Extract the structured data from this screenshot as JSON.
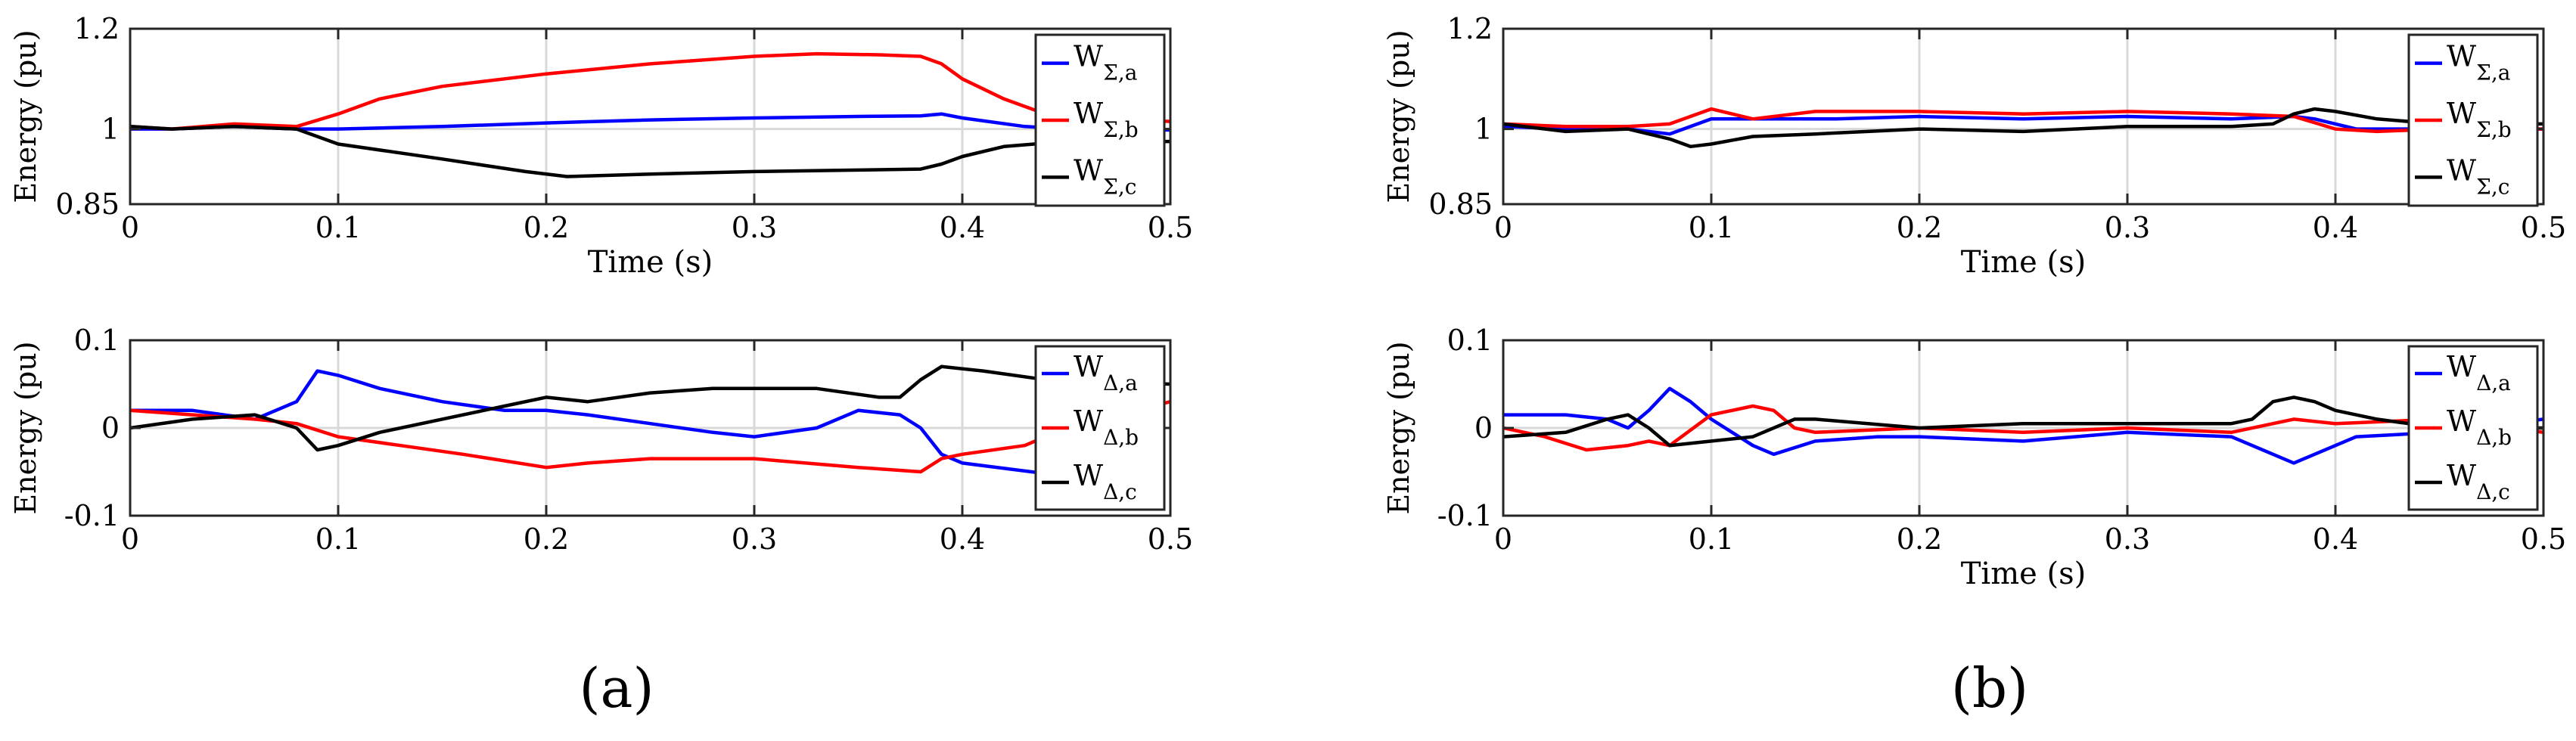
{
  "chart_data": [
    {
      "type": "line",
      "subfigure": "(a)",
      "ylabel": "Energy (pu)",
      "xlabel": "Time (s)",
      "xlim": [
        0,
        0.5
      ],
      "ylim": [
        0.85,
        1.2
      ],
      "xticks": [
        "0",
        "0.1",
        "0.2",
        "0.3",
        "0.4",
        "0.5"
      ],
      "xtick_values": [
        0,
        0.1,
        0.2,
        0.3,
        0.4,
        0.5
      ],
      "yticks": [
        "0.85",
        "1",
        "1.2"
      ],
      "ytick_values": [
        0.85,
        1,
        1.2
      ],
      "grid": true,
      "legend_position": "right",
      "series": [
        {
          "name": "W",
          "sub": "Σ,a",
          "color": "#0000ff",
          "x": [
            0,
            0.02,
            0.05,
            0.08,
            0.1,
            0.15,
            0.2,
            0.25,
            0.3,
            0.35,
            0.38,
            0.39,
            0.4,
            0.43,
            0.46,
            0.5
          ],
          "y": [
            1.0,
            1.0,
            1.005,
            1.0,
            1.0,
            1.005,
            1.012,
            1.018,
            1.022,
            1.025,
            1.026,
            1.03,
            1.022,
            1.005,
            0.998,
            0.998
          ]
        },
        {
          "name": "W",
          "sub": "Σ,b",
          "color": "#ff0000",
          "x": [
            0,
            0.02,
            0.05,
            0.08,
            0.1,
            0.12,
            0.15,
            0.2,
            0.25,
            0.3,
            0.33,
            0.36,
            0.38,
            0.39,
            0.4,
            0.42,
            0.44,
            0.47,
            0.5
          ],
          "y": [
            1.005,
            1.0,
            1.01,
            1.005,
            1.03,
            1.06,
            1.085,
            1.11,
            1.13,
            1.145,
            1.15,
            1.148,
            1.145,
            1.13,
            1.1,
            1.06,
            1.03,
            1.02,
            1.015
          ]
        },
        {
          "name": "W",
          "sub": "Σ,c",
          "color": "#000000",
          "x": [
            0,
            0.02,
            0.05,
            0.08,
            0.1,
            0.15,
            0.19,
            0.21,
            0.25,
            0.3,
            0.35,
            0.38,
            0.39,
            0.4,
            0.42,
            0.45,
            0.5
          ],
          "y": [
            1.005,
            1.0,
            1.005,
            1.0,
            0.97,
            0.94,
            0.915,
            0.905,
            0.91,
            0.915,
            0.918,
            0.92,
            0.93,
            0.945,
            0.965,
            0.975,
            0.975
          ]
        }
      ]
    },
    {
      "type": "line",
      "subfigure": "(a)",
      "ylabel": "Energy (pu)",
      "xlabel": "",
      "xlim": [
        0,
        0.5
      ],
      "ylim": [
        -0.1,
        0.1
      ],
      "xticks": [
        "0",
        "0.1",
        "0.2",
        "0.3",
        "0.4",
        "0.5"
      ],
      "xtick_values": [
        0,
        0.1,
        0.2,
        0.3,
        0.4,
        0.5
      ],
      "yticks": [
        "-0.1",
        "0",
        "0.1"
      ],
      "ytick_values": [
        -0.1,
        0,
        0.1
      ],
      "grid": true,
      "legend_position": "right",
      "series": [
        {
          "name": "W",
          "sub": "Δ,a",
          "color": "#0000ff",
          "x": [
            0,
            0.03,
            0.06,
            0.08,
            0.09,
            0.1,
            0.12,
            0.15,
            0.18,
            0.2,
            0.22,
            0.25,
            0.28,
            0.3,
            0.33,
            0.35,
            0.37,
            0.38,
            0.39,
            0.4,
            0.45
          ],
          "y": [
            0.02,
            0.02,
            0.01,
            0.03,
            0.065,
            0.06,
            0.045,
            0.03,
            0.02,
            0.02,
            0.015,
            0.005,
            -0.005,
            -0.01,
            0.0,
            0.02,
            0.015,
            0.0,
            -0.03,
            -0.04,
            -0.055
          ]
        },
        {
          "name": "W",
          "sub": "Δ,b",
          "color": "#ff0000",
          "x": [
            0,
            0.03,
            0.06,
            0.08,
            0.1,
            0.13,
            0.16,
            0.2,
            0.22,
            0.25,
            0.3,
            0.35,
            0.38,
            0.39,
            0.4,
            0.43,
            0.45,
            0.5
          ],
          "y": [
            0.02,
            0.015,
            0.01,
            0.005,
            -0.01,
            -0.02,
            -0.03,
            -0.045,
            -0.04,
            -0.035,
            -0.035,
            -0.045,
            -0.05,
            -0.035,
            -0.03,
            -0.02,
            0.0,
            0.03
          ]
        },
        {
          "name": "W",
          "sub": "Δ,c",
          "color": "#000000",
          "x": [
            0,
            0.03,
            0.06,
            0.08,
            0.09,
            0.1,
            0.12,
            0.15,
            0.18,
            0.2,
            0.22,
            0.25,
            0.28,
            0.3,
            0.33,
            0.36,
            0.37,
            0.38,
            0.39,
            0.41,
            0.44,
            0.5
          ],
          "y": [
            0.0,
            0.01,
            0.015,
            0.0,
            -0.025,
            -0.02,
            -0.005,
            0.01,
            0.025,
            0.035,
            0.03,
            0.04,
            0.045,
            0.045,
            0.045,
            0.035,
            0.035,
            0.055,
            0.07,
            0.065,
            0.055,
            0.05
          ]
        }
      ]
    },
    {
      "type": "line",
      "subfigure": "(b)",
      "ylabel": "Energy (pu)",
      "xlabel": "Time (s)",
      "xlim": [
        0,
        0.5
      ],
      "ylim": [
        0.85,
        1.2
      ],
      "xticks": [
        "0",
        "0.1",
        "0.2",
        "0.3",
        "0.4",
        "0.5"
      ],
      "xtick_values": [
        0,
        0.1,
        0.2,
        0.3,
        0.4,
        0.5
      ],
      "yticks": [
        "0.85",
        "1",
        "1.2"
      ],
      "ytick_values": [
        0.85,
        1,
        1.2
      ],
      "grid": true,
      "legend_position": "right",
      "series": [
        {
          "name": "W",
          "sub": "Σ,a",
          "color": "#0000ff",
          "x": [
            0,
            0.03,
            0.06,
            0.08,
            0.1,
            0.13,
            0.16,
            0.2,
            0.25,
            0.3,
            0.35,
            0.38,
            0.39,
            0.41,
            0.45,
            0.5
          ],
          "y": [
            1.005,
            1.0,
            1.0,
            0.99,
            1.02,
            1.02,
            1.02,
            1.025,
            1.02,
            1.025,
            1.02,
            1.025,
            1.02,
            1.0,
            1.0,
            1.0
          ]
        },
        {
          "name": "W",
          "sub": "Σ,b",
          "color": "#ff0000",
          "x": [
            0,
            0.03,
            0.06,
            0.08,
            0.1,
            0.12,
            0.15,
            0.2,
            0.25,
            0.3,
            0.35,
            0.38,
            0.4,
            0.42,
            0.45,
            0.5
          ],
          "y": [
            1.01,
            1.005,
            1.005,
            1.01,
            1.04,
            1.02,
            1.035,
            1.035,
            1.03,
            1.035,
            1.03,
            1.025,
            1.0,
            0.995,
            1.0,
            1.0
          ]
        },
        {
          "name": "W",
          "sub": "Σ,c",
          "color": "#000000",
          "x": [
            0,
            0.03,
            0.06,
            0.08,
            0.09,
            0.1,
            0.12,
            0.15,
            0.2,
            0.25,
            0.3,
            0.35,
            0.37,
            0.38,
            0.39,
            0.4,
            0.42,
            0.45,
            0.5
          ],
          "y": [
            1.01,
            0.995,
            1.0,
            0.98,
            0.965,
            0.97,
            0.985,
            0.99,
            1.0,
            0.995,
            1.005,
            1.005,
            1.01,
            1.03,
            1.04,
            1.035,
            1.02,
            1.01,
            1.01
          ]
        }
      ]
    },
    {
      "type": "line",
      "subfigure": "(b)",
      "ylabel": "Energy (pu)",
      "xlabel": "Time (s)",
      "xlim": [
        0,
        0.5
      ],
      "ylim": [
        -0.1,
        0.1
      ],
      "xticks": [
        "0",
        "0.1",
        "0.2",
        "0.3",
        "0.4",
        "0.5"
      ],
      "xtick_values": [
        0,
        0.1,
        0.2,
        0.3,
        0.4,
        0.5
      ],
      "yticks": [
        "-0.1",
        "0",
        "0.1"
      ],
      "ytick_values": [
        -0.1,
        0,
        0.1
      ],
      "grid": true,
      "legend_position": "right",
      "series": [
        {
          "name": "W",
          "sub": "Δ,a",
          "color": "#0000ff",
          "x": [
            0,
            0.03,
            0.05,
            0.06,
            0.07,
            0.08,
            0.09,
            0.1,
            0.12,
            0.13,
            0.15,
            0.18,
            0.2,
            0.25,
            0.3,
            0.35,
            0.37,
            0.38,
            0.39,
            0.41,
            0.45,
            0.5
          ],
          "y": [
            0.015,
            0.015,
            0.01,
            0.0,
            0.02,
            0.045,
            0.03,
            0.01,
            -0.02,
            -0.03,
            -0.015,
            -0.01,
            -0.01,
            -0.015,
            -0.005,
            -0.01,
            -0.03,
            -0.04,
            -0.03,
            -0.01,
            -0.005,
            0.01
          ]
        },
        {
          "name": "W",
          "sub": "Δ,b",
          "color": "#ff0000",
          "x": [
            0,
            0.02,
            0.04,
            0.06,
            0.07,
            0.08,
            0.1,
            0.12,
            0.13,
            0.14,
            0.15,
            0.2,
            0.25,
            0.3,
            0.35,
            0.38,
            0.4,
            0.45,
            0.5
          ],
          "y": [
            0.0,
            -0.01,
            -0.025,
            -0.02,
            -0.015,
            -0.02,
            0.015,
            0.025,
            0.02,
            0.0,
            -0.005,
            0.0,
            -0.005,
            0.0,
            -0.005,
            0.01,
            0.005,
            0.01,
            -0.005
          ]
        },
        {
          "name": "W",
          "sub": "Δ,c",
          "color": "#000000",
          "x": [
            0,
            0.03,
            0.05,
            0.06,
            0.07,
            0.08,
            0.1,
            0.12,
            0.14,
            0.15,
            0.2,
            0.25,
            0.3,
            0.35,
            0.36,
            0.37,
            0.38,
            0.39,
            0.4,
            0.42,
            0.45,
            0.5
          ],
          "y": [
            -0.01,
            -0.005,
            0.01,
            0.015,
            0.0,
            -0.02,
            -0.015,
            -0.01,
            0.01,
            0.01,
            0.0,
            0.005,
            0.005,
            0.005,
            0.01,
            0.03,
            0.035,
            0.03,
            0.02,
            0.01,
            0.0,
            0.0
          ]
        }
      ]
    }
  ],
  "captions": {
    "a": "(a)",
    "b": "(b)"
  }
}
